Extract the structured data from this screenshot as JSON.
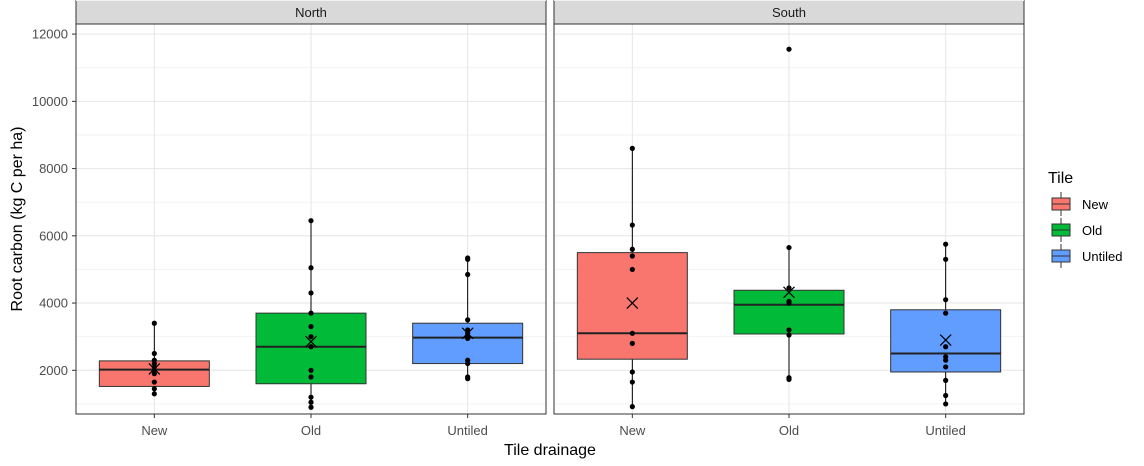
{
  "chart_data": {
    "type": "box",
    "xlabel": "Tile drainage",
    "ylabel": "Root carbon (kg C per ha)",
    "ylim": [
      700,
      12300
    ],
    "yticks": [
      2000,
      4000,
      6000,
      8000,
      10000,
      12000
    ],
    "categories": [
      "New",
      "Old",
      "Untiled"
    ],
    "grid": true,
    "legend": {
      "title": "Tile",
      "position": "right",
      "entries": [
        {
          "label": "New",
          "color": "#F8766D"
        },
        {
          "label": "Old",
          "color": "#00BA38"
        },
        {
          "label": "Untiled",
          "color": "#619CFF"
        }
      ]
    },
    "panels": [
      {
        "strip": "North",
        "boxes": [
          {
            "category": "New",
            "color": "#F8766D",
            "q1": 1520,
            "median": 2020,
            "q3": 2280,
            "whisker_low": 1300,
            "whisker_high": 3400,
            "mean": 2040,
            "points": [
              1300,
              1450,
              1650,
              1900,
              2000,
              2100,
              2200,
              2300,
              2500,
              3400
            ]
          },
          {
            "category": "Old",
            "color": "#00BA38",
            "q1": 1600,
            "median": 2700,
            "q3": 3700,
            "whisker_low": 900,
            "whisker_high": 6450,
            "mean": 2850,
            "points": [
              900,
              1050,
              1200,
              1800,
              2000,
              2700,
              3000,
              3300,
              3700,
              4300,
              5050,
              6450
            ]
          },
          {
            "category": "Untiled",
            "color": "#619CFF",
            "q1": 2200,
            "median": 2970,
            "q3": 3400,
            "whisker_low": 1750,
            "whisker_high": 5320,
            "mean": 3100,
            "points": [
              1750,
              1800,
              2200,
              2300,
              2950,
              3000,
              3100,
              3200,
              3500,
              4850,
              5300,
              5340
            ]
          }
        ]
      },
      {
        "strip": "South",
        "boxes": [
          {
            "category": "New",
            "color": "#F8766D",
            "q1": 2330,
            "median": 3100,
            "q3": 5500,
            "whisker_low": 920,
            "whisker_high": 8600,
            "mean": 4000,
            "points": [
              920,
              1650,
              1950,
              2800,
              3100,
              5000,
              5400,
              5600,
              6320,
              8600
            ]
          },
          {
            "category": "Old",
            "color": "#00BA38",
            "q1": 3080,
            "median": 3950,
            "q3": 4380,
            "whisker_low": 1730,
            "whisker_high": 5650,
            "mean": 4320,
            "points": [
              1730,
              1780,
              3050,
              3200,
              4000,
              4050,
              4450,
              5650,
              11550
            ]
          },
          {
            "category": "Untiled",
            "color": "#619CFF",
            "q1": 1950,
            "median": 2500,
            "q3": 3800,
            "whisker_low": 1000,
            "whisker_high": 5750,
            "mean": 2900,
            "points": [
              1000,
              1250,
              1700,
              2100,
              2300,
              2400,
              2700,
              3700,
              4100,
              5300,
              5750
            ]
          }
        ]
      }
    ]
  }
}
